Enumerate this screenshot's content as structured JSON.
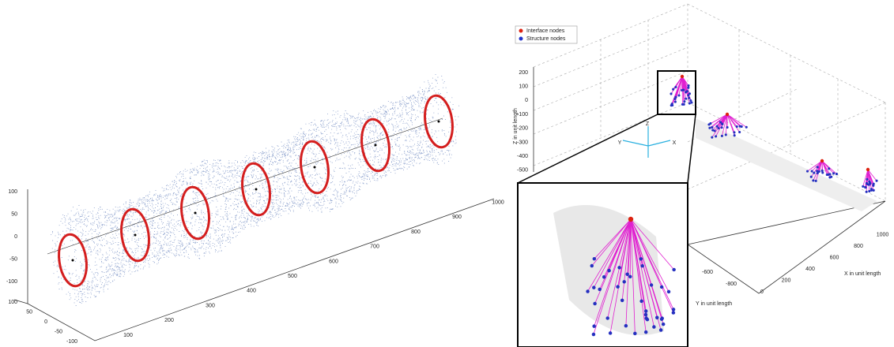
{
  "left_plot": {
    "z_ticks": [
      "100",
      "50",
      "0",
      "-50",
      "-100"
    ],
    "y_ticks": [
      "100",
      "50",
      "0",
      "-50",
      "-100"
    ],
    "x_ticks": [
      "100",
      "200",
      "300",
      "400",
      "500",
      "600",
      "700",
      "800",
      "900",
      "1000"
    ]
  },
  "right_plot": {
    "legend": [
      "Interface nodes",
      "Structure nodes"
    ],
    "z_ticks": [
      "200",
      "100",
      "0",
      "-100",
      "-200",
      "-300",
      "-400",
      "-500"
    ],
    "z_label": "Z in unit length",
    "y_ticks": [
      "-600",
      "-800"
    ],
    "y_label": "Y in unit length",
    "x_ticks": [
      "0",
      "200",
      "400",
      "600",
      "800",
      "1000"
    ],
    "x_label": "X in unit length",
    "triad": [
      "Z",
      "Y",
      "X"
    ]
  }
}
